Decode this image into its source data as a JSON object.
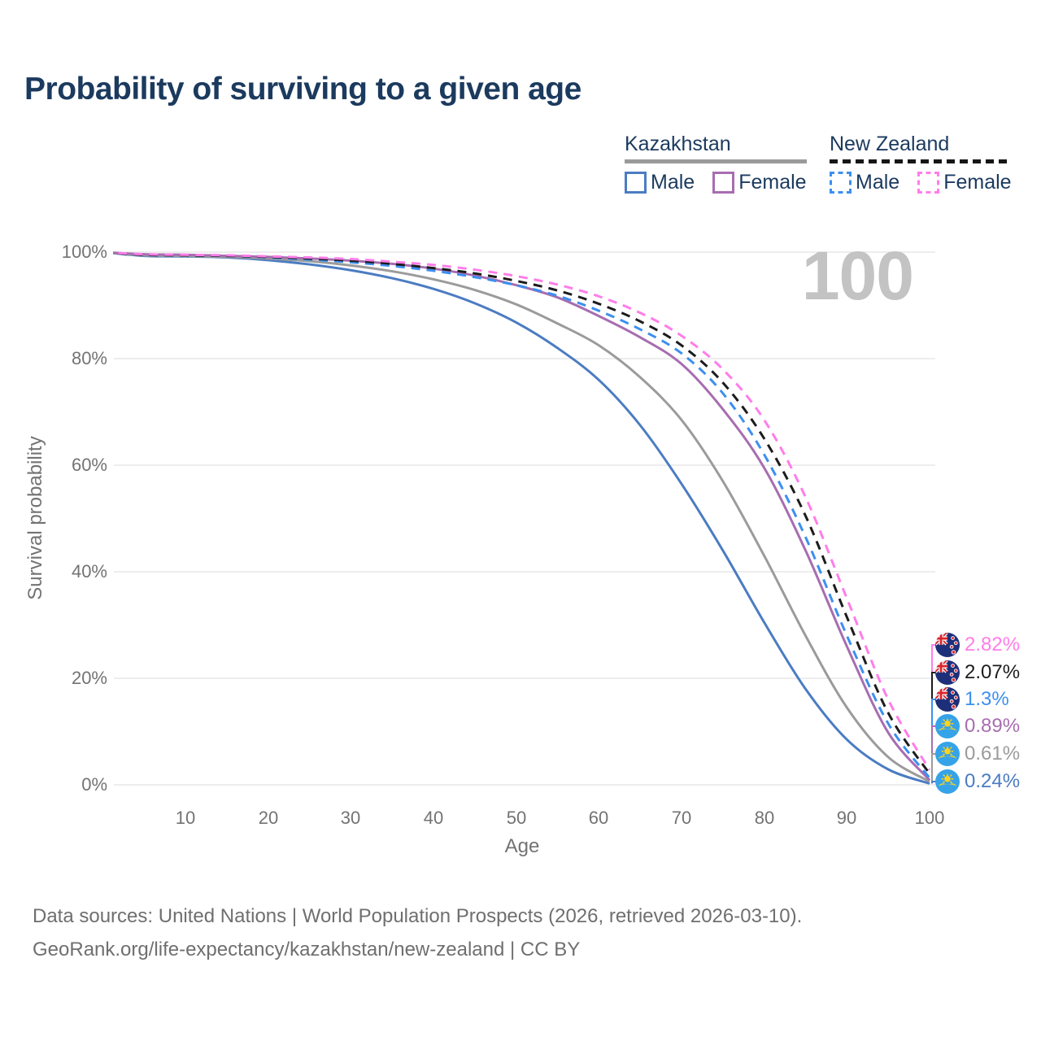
{
  "title": "Probability of surviving to a given age",
  "watermark": "100",
  "legend": {
    "groups": [
      {
        "label": "Kazakhstan",
        "style": "solid",
        "items": [
          {
            "label": "Male"
          },
          {
            "label": "Female"
          }
        ]
      },
      {
        "label": "New Zealand",
        "style": "dashed",
        "items": [
          {
            "label": "Male"
          },
          {
            "label": "Female"
          }
        ]
      }
    ]
  },
  "chart_data": {
    "type": "line",
    "title": "Probability of surviving to a given age",
    "xlabel": "Age",
    "ylabel": "Survival probability",
    "xlim": [
      0,
      100
    ],
    "ylim": [
      0,
      100
    ],
    "grid": "horizontal",
    "x_tick_labels": [
      "10",
      "20",
      "30",
      "40",
      "50",
      "60",
      "70",
      "80",
      "90",
      "100"
    ],
    "y_tick_labels": [
      "0%",
      "20%",
      "40%",
      "60%",
      "80%",
      "100%"
    ],
    "x": [
      0,
      5,
      10,
      15,
      20,
      25,
      30,
      35,
      40,
      45,
      50,
      55,
      60,
      65,
      70,
      75,
      80,
      85,
      90,
      95,
      100
    ],
    "series": [
      {
        "name": "Kazakhstan Male",
        "country": "Kazakhstan",
        "sex": "Male",
        "color": "#4b7cc2",
        "dash": "solid",
        "values": [
          100,
          99.3,
          99.2,
          99.0,
          98.5,
          97.7,
          96.6,
          95.1,
          93.1,
          90.4,
          86.8,
          82.0,
          76.0,
          67.5,
          56.5,
          44.0,
          30.5,
          18.0,
          8.5,
          2.9,
          0.24
        ]
      },
      {
        "name": "Kazakhstan",
        "country": "Kazakhstan",
        "sex": "Both",
        "color": "#9b9b9b",
        "dash": "solid",
        "values": [
          100,
          99.4,
          99.3,
          99.1,
          98.8,
          98.3,
          97.5,
          96.4,
          94.9,
          92.9,
          90.2,
          86.6,
          82.5,
          76.5,
          68.5,
          57.0,
          43.0,
          28.0,
          14.5,
          5.2,
          0.61
        ]
      },
      {
        "name": "Kazakhstan Female",
        "country": "Kazakhstan",
        "sex": "Female",
        "color": "#a76db0",
        "dash": "solid",
        "values": [
          100,
          99.6,
          99.5,
          99.3,
          99.1,
          98.8,
          98.4,
          97.8,
          96.9,
          95.6,
          93.8,
          91.5,
          88.0,
          84.0,
          79.0,
          70.5,
          59.5,
          44.0,
          26.0,
          9.8,
          0.89
        ]
      },
      {
        "name": "New Zealand Male",
        "country": "New Zealand",
        "sex": "Male",
        "color": "#3c8ff0",
        "dash": "dashed",
        "values": [
          100,
          99.5,
          99.4,
          99.3,
          99.0,
          98.6,
          98.1,
          97.4,
          96.5,
          95.3,
          93.8,
          91.8,
          89.0,
          85.5,
          81.0,
          73.5,
          62.0,
          46.5,
          28.0,
          11.5,
          1.3
        ]
      },
      {
        "name": "New Zealand",
        "country": "New Zealand",
        "sex": "Both",
        "color": "#1c1c1c",
        "dash": "dashed",
        "values": [
          100,
          99.5,
          99.4,
          99.3,
          99.1,
          98.8,
          98.4,
          97.8,
          97.0,
          96.0,
          94.6,
          92.8,
          90.3,
          87.0,
          82.5,
          75.5,
          65.0,
          50.5,
          31.5,
          13.5,
          2.07
        ]
      },
      {
        "name": "New Zealand Female",
        "country": "New Zealand",
        "sex": "Female",
        "color": "#ff7de9",
        "dash": "dashed",
        "values": [
          100,
          99.6,
          99.5,
          99.4,
          99.2,
          99.0,
          98.7,
          98.2,
          97.6,
          96.7,
          95.5,
          93.9,
          91.7,
          88.6,
          84.3,
          78.0,
          68.5,
          54.0,
          35.0,
          16.0,
          2.82
        ]
      }
    ],
    "end_labels": [
      {
        "text": "2.82%",
        "value": 2.82,
        "color": "#ff7de9",
        "flag": "nz"
      },
      {
        "text": "2.07%",
        "value": 2.07,
        "color": "#1c1c1c",
        "flag": "nz"
      },
      {
        "text": "1.3%",
        "value": 1.3,
        "color": "#3c8ff0",
        "flag": "nz"
      },
      {
        "text": "0.89%",
        "value": 0.89,
        "color": "#a76db0",
        "flag": "kz"
      },
      {
        "text": "0.61%",
        "value": 0.61,
        "color": "#9b9b9b",
        "flag": "kz"
      },
      {
        "text": "0.24%",
        "value": 0.24,
        "color": "#4b7cc2",
        "flag": "kz"
      }
    ]
  },
  "footer": {
    "line1": "Data sources: United Nations | World Population Prospects (2026, retrieved 2026-03-10).",
    "line2": "GeoRank.org/life-expectancy/kazakhstan/new-zealand | CC BY"
  }
}
